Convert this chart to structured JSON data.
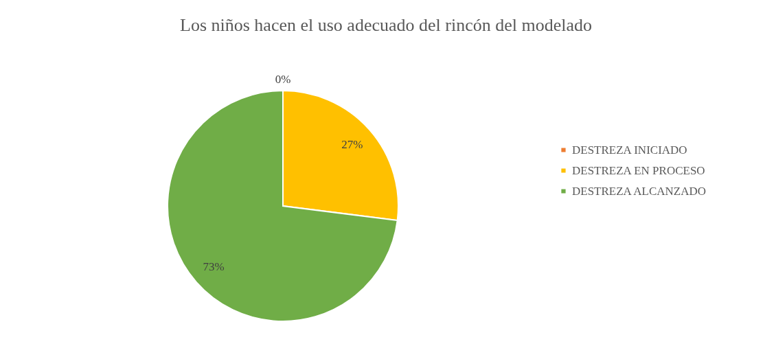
{
  "chart_data": {
    "type": "pie",
    "title": "Los niños hacen el uso adecuado del rincón del modelado",
    "categories": [
      "DESTREZA INICIADO",
      "DESTREZA EN PROCESO",
      "DESTREZA ALCANZADO"
    ],
    "values": [
      0,
      27,
      73
    ],
    "colors": [
      "#ed7d31",
      "#ffc000",
      "#70ad47"
    ],
    "value_labels": [
      "0%",
      "27%",
      "73%"
    ],
    "legend": "right"
  }
}
